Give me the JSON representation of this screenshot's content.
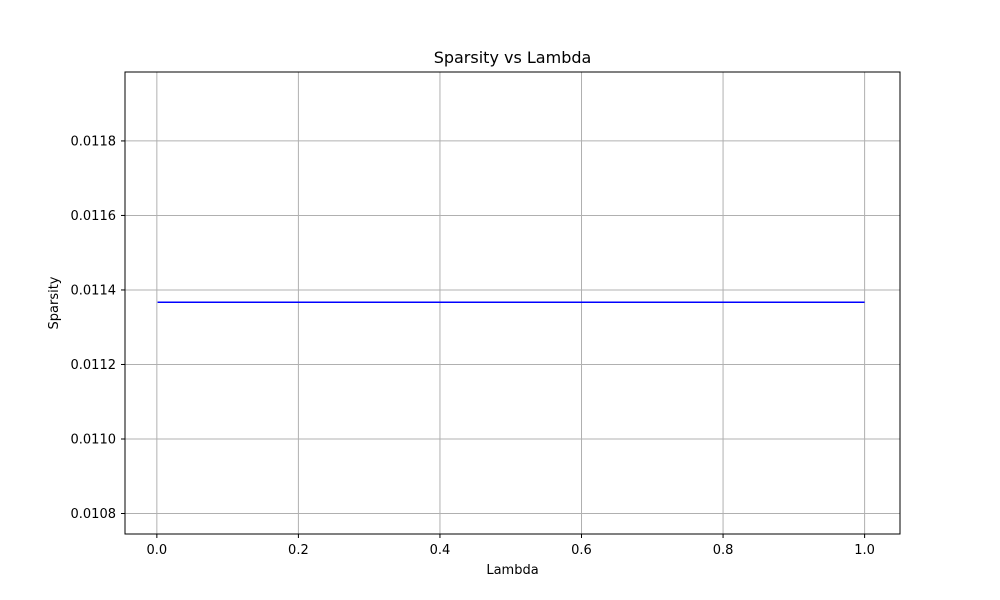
{
  "chart_data": {
    "type": "line",
    "title": "Sparsity vs Lambda",
    "xlabel": "Lambda",
    "ylabel": "Sparsity",
    "xlim": [
      -0.045,
      1.05
    ],
    "ylim": [
      0.010745,
      0.011985
    ],
    "xticks": [
      0.0,
      0.2,
      0.4,
      0.6,
      0.8,
      1.0
    ],
    "xtick_labels": [
      "0.0",
      "0.2",
      "0.4",
      "0.6",
      "0.8",
      "1.0"
    ],
    "yticks": [
      0.0108,
      0.011,
      0.0112,
      0.0114,
      0.0116,
      0.0118
    ],
    "ytick_labels": [
      "0.0108",
      "0.0110",
      "0.0112",
      "0.0114",
      "0.0116",
      "0.0118"
    ],
    "grid": true,
    "series": [
      {
        "color": "#0000ff",
        "x": [
          0.001,
          0.01,
          0.1,
          0.5,
          1.0
        ],
        "y": [
          0.011367,
          0.011367,
          0.011367,
          0.011367,
          0.011367
        ]
      }
    ]
  }
}
